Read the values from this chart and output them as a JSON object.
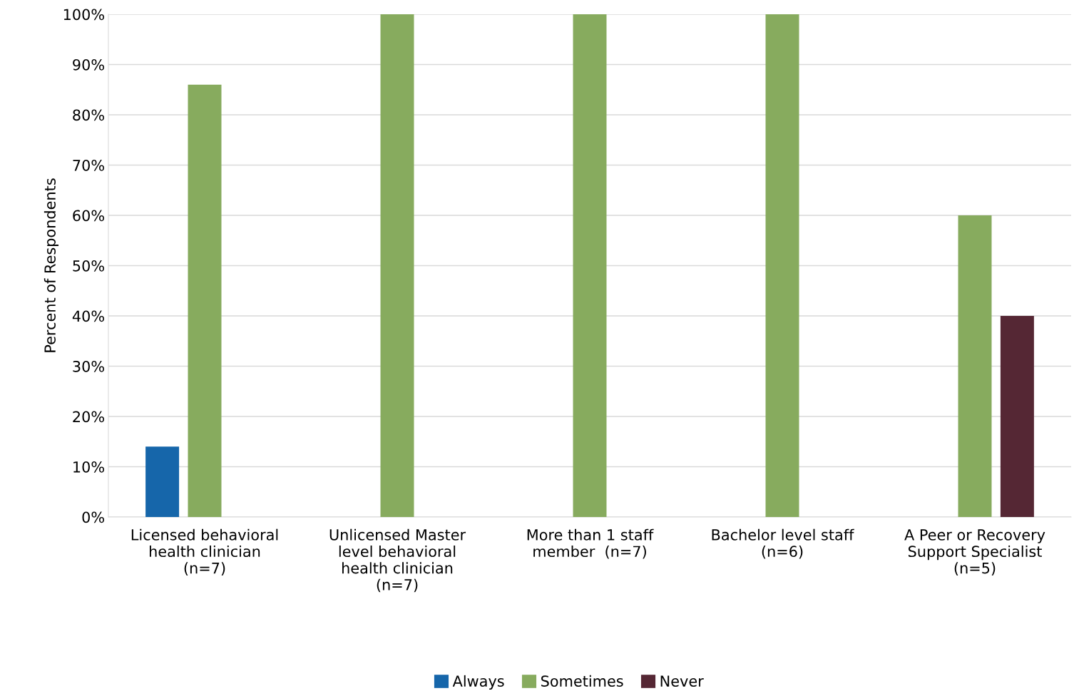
{
  "chart_data": {
    "type": "bar",
    "ylabel": "Percent of Respondents",
    "categories": [
      "Licensed behavioral\nhealth clinician\n(n=7)",
      "Unlicensed Master\nlevel behavioral\nhealth clinician\n(n=7)",
      "More than 1 staff\nmember  (n=7)",
      "Bachelor level staff\n(n=6)",
      "A Peer or Recovery\nSupport Specialist\n(n=5)"
    ],
    "series": [
      {
        "name": "Always",
        "color": "#1666aa",
        "values": [
          14,
          null,
          null,
          null,
          null
        ]
      },
      {
        "name": "Sometimes",
        "color": "#87ab5e",
        "values": [
          86,
          100,
          100,
          100,
          60
        ]
      },
      {
        "name": "Never",
        "color": "#552734",
        "values": [
          null,
          null,
          null,
          null,
          40
        ]
      }
    ],
    "ylim": [
      0,
      100
    ],
    "yticks": [
      {
        "value": 0,
        "label": "0%"
      },
      {
        "value": 10,
        "label": "10%"
      },
      {
        "value": 20,
        "label": "20%"
      },
      {
        "value": 30,
        "label": "30%"
      },
      {
        "value": 40,
        "label": "40%"
      },
      {
        "value": 50,
        "label": "50%"
      },
      {
        "value": 60,
        "label": "60%"
      },
      {
        "value": 70,
        "label": "70%"
      },
      {
        "value": 80,
        "label": "80%"
      },
      {
        "value": 90,
        "label": "90%"
      },
      {
        "value": 100,
        "label": "100%"
      }
    ],
    "grid": "y",
    "legend": "bottom"
  }
}
